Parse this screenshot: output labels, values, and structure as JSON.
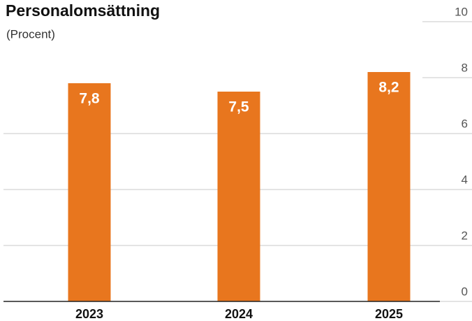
{
  "chart_data": {
    "type": "bar",
    "title": "Personalomsättning",
    "subtitle": "(Procent)",
    "categories": [
      "2023",
      "2024",
      "2025"
    ],
    "values": [
      7.8,
      7.5,
      8.2
    ],
    "value_labels": [
      "7,8",
      "7,5",
      "8,2"
    ],
    "color": "#e8761e",
    "ylim": [
      0,
      10
    ],
    "yticks": [
      0,
      2,
      4,
      6,
      8,
      10
    ],
    "grid": true
  }
}
